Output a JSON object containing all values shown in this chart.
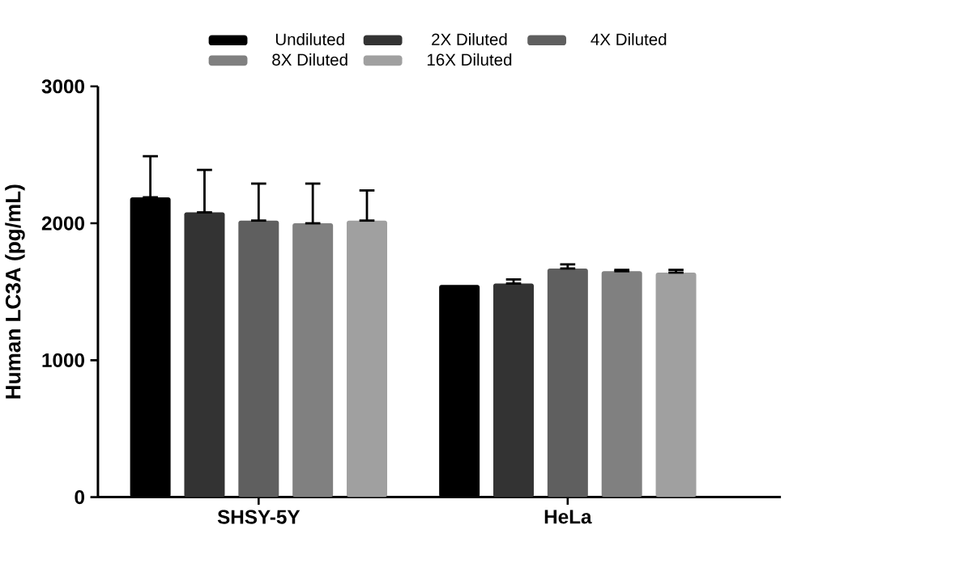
{
  "chart_data": {
    "type": "bar",
    "ylabel": "Human LC3A (pg/mL)",
    "categories": [
      "SHSY-5Y",
      "HeLa"
    ],
    "series": [
      {
        "name": "Undiluted",
        "color": "#000000",
        "values": [
          2190,
          1550
        ],
        "errors": [
          [
            2190,
            2490
          ],
          null
        ]
      },
      {
        "name": "2X Diluted",
        "color": "#333333",
        "values": [
          2080,
          1560
        ],
        "errors": [
          [
            2080,
            2390
          ],
          [
            1560,
            1590
          ]
        ]
      },
      {
        "name": "4X Diluted",
        "color": "#5f5f5f",
        "values": [
          2020,
          1670
        ],
        "errors": [
          [
            2020,
            2290
          ],
          [
            1670,
            1700
          ]
        ]
      },
      {
        "name": "8X Diluted",
        "color": "#808080",
        "values": [
          2000,
          1650
        ],
        "errors": [
          [
            2000,
            2290
          ],
          [
            1650,
            1660
          ]
        ]
      },
      {
        "name": "16X Diluted",
        "color": "#a0a0a0",
        "values": [
          2020,
          1640
        ],
        "errors": [
          [
            2020,
            2240
          ],
          [
            1640,
            1660
          ]
        ]
      }
    ],
    "ylim": [
      0,
      3000
    ],
    "yticks": [
      0,
      1000,
      2000,
      3000
    ],
    "legend": "top",
    "grid": false
  }
}
